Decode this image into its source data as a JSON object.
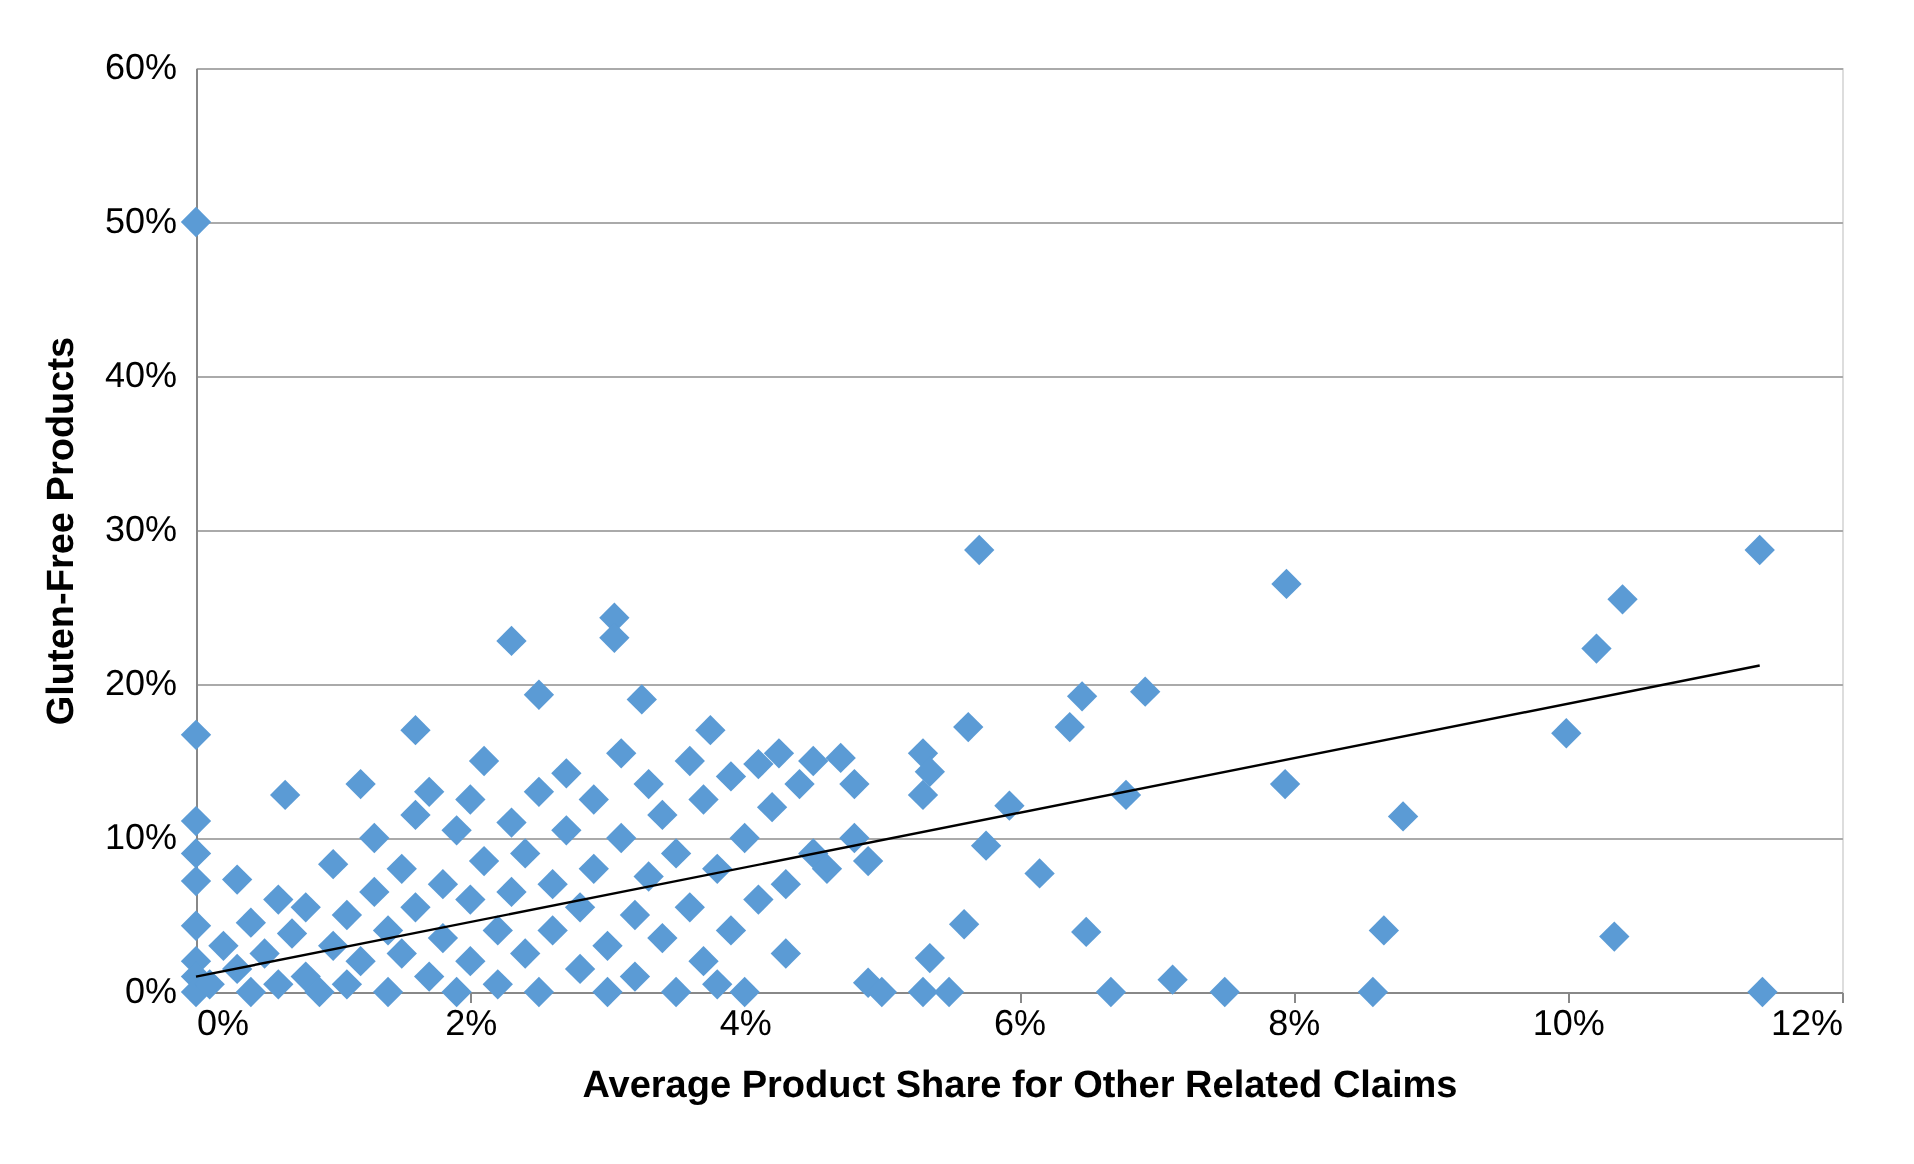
{
  "chart_data": {
    "type": "scatter",
    "xlabel": "Average Product Share for Other Related Claims",
    "ylabel": "Gluten-Free Products",
    "xlim": [
      0,
      12
    ],
    "ylim": [
      0,
      60
    ],
    "xticks": [
      {
        "value": 0,
        "label": "0%"
      },
      {
        "value": 2,
        "label": "2%"
      },
      {
        "value": 4,
        "label": "4%"
      },
      {
        "value": 6,
        "label": "6%"
      },
      {
        "value": 8,
        "label": "8%"
      },
      {
        "value": 10,
        "label": "10%"
      },
      {
        "value": 12,
        "label": "12%"
      }
    ],
    "yticks": [
      {
        "value": 0,
        "label": "0%"
      },
      {
        "value": 10,
        "label": "10%"
      },
      {
        "value": 20,
        "label": "20%"
      },
      {
        "value": 30,
        "label": "30%"
      },
      {
        "value": 40,
        "label": "40%"
      },
      {
        "value": 50,
        "label": "50%"
      },
      {
        "value": 60,
        "label": "60%"
      }
    ],
    "grid": "y",
    "series": [
      {
        "color": "#5b9bd5",
        "marker": "diamond",
        "x": [
          0,
          0,
          0,
          0,
          0,
          0,
          0,
          0,
          0,
          0.1,
          0.2,
          0.3,
          0.3,
          0.4,
          0.4,
          0.5,
          0.6,
          0.6,
          0.65,
          0.7,
          0.8,
          0.8,
          0.9,
          1.0,
          1.0,
          1.1,
          1.1,
          1.2,
          1.2,
          1.3,
          1.3,
          1.4,
          1.4,
          1.5,
          1.5,
          1.6,
          1.6,
          1.6,
          1.7,
          1.7,
          1.8,
          1.8,
          1.9,
          1.9,
          2.0,
          2.0,
          2.0,
          2.1,
          2.1,
          2.2,
          2.2,
          2.3,
          2.3,
          2.3,
          2.4,
          2.4,
          2.5,
          2.5,
          2.5,
          2.6,
          2.6,
          2.7,
          2.7,
          2.8,
          2.8,
          2.9,
          2.9,
          3.0,
          3.0,
          3.05,
          3.05,
          3.1,
          3.1,
          3.2,
          3.2,
          3.25,
          3.3,
          3.3,
          3.4,
          3.4,
          3.5,
          3.5,
          3.6,
          3.6,
          3.7,
          3.75,
          3.7,
          3.8,
          3.8,
          3.9,
          3.9,
          4.0,
          4.0,
          4.1,
          4.1,
          4.2,
          4.25,
          4.3,
          4.3,
          4.4,
          4.5,
          4.5,
          4.6,
          4.7,
          4.8,
          4.8,
          4.9,
          4.9,
          5.0,
          5.3,
          5.3,
          5.35,
          5.35,
          5.3,
          5.49,
          5.6,
          5.63,
          5.71,
          5.76,
          5.93,
          6.15,
          6.37,
          6.46,
          6.49,
          6.67,
          6.78,
          6.92,
          7.12,
          7.5,
          7.94,
          7.95,
          8.58,
          8.66,
          8.8,
          9.99,
          10.21,
          10.34,
          10.4,
          11.4,
          11.42
        ],
        "values": [
          50,
          16.7,
          11.1,
          9,
          7.2,
          4.3,
          2,
          1,
          0,
          0.5,
          3,
          7.3,
          1.5,
          0,
          4.5,
          2.5,
          6,
          0.5,
          12.8,
          3.8,
          1,
          5.5,
          0,
          8.3,
          3,
          5,
          0.5,
          13.5,
          2,
          10,
          6.5,
          4,
          0,
          8,
          2.5,
          17,
          11.5,
          5.5,
          13,
          1,
          7,
          3.5,
          10.5,
          0,
          12.5,
          6,
          2,
          15,
          8.5,
          4,
          0.5,
          22.8,
          11,
          6.5,
          2.5,
          9,
          19.3,
          13,
          0,
          7,
          4,
          14.2,
          10.5,
          1.5,
          5.5,
          12.5,
          8,
          3,
          0,
          24.3,
          23,
          15.5,
          10,
          5,
          1,
          19,
          13.5,
          7.5,
          3.5,
          11.5,
          0,
          9,
          15,
          5.5,
          2,
          17,
          12.5,
          8,
          0.5,
          4,
          14,
          0,
          10,
          6,
          14.8,
          12,
          15.5,
          7,
          2.5,
          13.5,
          15,
          9,
          8,
          15.2,
          13.5,
          10,
          8.5,
          0.6,
          0,
          12.8,
          15.5,
          14.3,
          2.2,
          0,
          0,
          4.4,
          17.2,
          28.7,
          9.5,
          12.1,
          7.7,
          17.2,
          19.2,
          3.9,
          0,
          12.8,
          19.5,
          0.8,
          0,
          13.5,
          26.5,
          0,
          4,
          11.4,
          16.8,
          22.3,
          3.6,
          25.5,
          28.7,
          0
        ]
      },
      {
        "type": "line",
        "color": "#000000",
        "x": [
          0,
          11.4
        ],
        "values": [
          1,
          21.2
        ]
      }
    ]
  }
}
